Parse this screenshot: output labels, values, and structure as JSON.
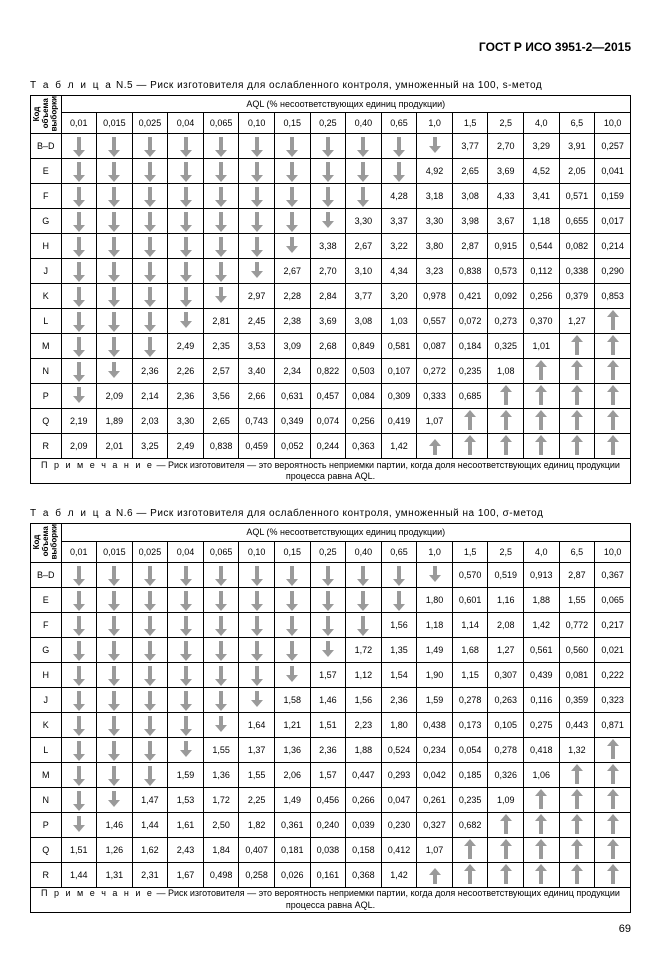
{
  "doc_header": "ГОСТ Р ИСО 3951-2—2015",
  "page_number": "69",
  "table_word": "Т а б л и ц а",
  "note_word": "П р и м е ч а н и е",
  "aql_header": "AQL (% несоответствующих единиц продукции)",
  "row_header": "Код объема выборки",
  "col_headers": [
    "0,01",
    "0,015",
    "0,025",
    "0,04",
    "0,065",
    "0,10",
    "0,15",
    "0,25",
    "0,40",
    "0,65",
    "1,0",
    "1,5",
    "2,5",
    "4,0",
    "6,5",
    "10,0"
  ],
  "row_labels": [
    "B–D",
    "E",
    "F",
    "G",
    "H",
    "J",
    "K",
    "L",
    "M",
    "N",
    "P",
    "Q",
    "R"
  ],
  "note_text": " — Риск изготовителя — это вероятность неприемки партии, когда доля несоответствующих единиц продукции процесса равна AQL.",
  "arrow_color": "#9a9a9a",
  "tables": [
    {
      "caption_rest": "  N.5 — Риск изготовителя для ослабленного контроля, умноженный на 100, s-метод",
      "cells": [
        [
          "↓",
          "↓",
          "↓",
          "↓",
          "↓",
          "↓",
          "↓",
          "↓",
          "↓",
          "↓",
          "⇓",
          "3,77",
          "2,70",
          "3,29",
          "3,91",
          "0,257"
        ],
        [
          "↓",
          "↓",
          "↓",
          "↓",
          "↓",
          "↓",
          "↓",
          "↓",
          "↓",
          "↓",
          "4,92",
          "2,65",
          "3,69",
          "4,52",
          "2,05",
          "0,041"
        ],
        [
          "↓",
          "↓",
          "↓",
          "↓",
          "↓",
          "↓",
          "↓",
          "↓",
          "↓",
          "4,28",
          "3,18",
          "3,08",
          "4,33",
          "3,41",
          "0,571",
          "0,159"
        ],
        [
          "↓",
          "↓",
          "↓",
          "↓",
          "↓",
          "↓",
          "↓",
          "⇓",
          "3,30",
          "3,37",
          "3,30",
          "3,98",
          "3,67",
          "1,18",
          "0,655",
          "0,017"
        ],
        [
          "↓",
          "↓",
          "↓",
          "↓",
          "↓",
          "↓",
          "⇓",
          "3,38",
          "2,67",
          "3,22",
          "3,80",
          "2,87",
          "0,915",
          "0,544",
          "0,082",
          "0,214"
        ],
        [
          "↓",
          "↓",
          "↓",
          "↓",
          "↓",
          "⇓",
          "2,67",
          "2,70",
          "3,10",
          "4,34",
          "3,23",
          "0,838",
          "0,573",
          "0,112",
          "0,338",
          "0,290"
        ],
        [
          "↓",
          "↓",
          "↓",
          "↓",
          "⇓",
          "2,97",
          "2,28",
          "2,84",
          "3,77",
          "3,20",
          "0,978",
          "0,421",
          "0,092",
          "0,256",
          "0,379",
          "0,853"
        ],
        [
          "↓",
          "↓",
          "↓",
          "⇓",
          "2,81",
          "2,45",
          "2,38",
          "3,69",
          "3,08",
          "1,03",
          "0,557",
          "0,072",
          "0,273",
          "0,370",
          "1,27",
          "↑"
        ],
        [
          "↓",
          "↓",
          "↓",
          "2,49",
          "2,35",
          "3,53",
          "3,09",
          "2,68",
          "0,849",
          "0,581",
          "0,087",
          "0,184",
          "0,325",
          "1,01",
          "↑",
          "↑"
        ],
        [
          "↓",
          "⇓",
          "2,36",
          "2,26",
          "2,57",
          "3,40",
          "2,34",
          "0,822",
          "0,503",
          "0,107",
          "0,272",
          "0,235",
          "1,08",
          "↑",
          "↑",
          "↑"
        ],
        [
          "⇓",
          "2,09",
          "2,14",
          "2,36",
          "3,56",
          "2,66",
          "0,631",
          "0,457",
          "0,084",
          "0,309",
          "0,333",
          "0,685",
          "↑",
          "↑",
          "↑",
          "↑"
        ],
        [
          "2,19",
          "1,89",
          "2,03",
          "3,30",
          "2,65",
          "0,743",
          "0,349",
          "0,074",
          "0,256",
          "0,419",
          "1,07",
          "↑",
          "↑",
          "↑",
          "↑",
          "↑"
        ],
        [
          "2,09",
          "2,01",
          "3,25",
          "2,49",
          "0,838",
          "0,459",
          "0,052",
          "0,244",
          "0,363",
          "1,42",
          "⇑",
          "↑",
          "↑",
          "↑",
          "↑",
          "↑"
        ]
      ]
    },
    {
      "caption_rest": "  N.6 — Риск изготовителя для ослабленного контроля, умноженный на 100, σ-метод",
      "cells": [
        [
          "↓",
          "↓",
          "↓",
          "↓",
          "↓",
          "↓",
          "↓",
          "↓",
          "↓",
          "↓",
          "⇓",
          "0,570",
          "0,519",
          "0,913",
          "2,87",
          "0,367"
        ],
        [
          "↓",
          "↓",
          "↓",
          "↓",
          "↓",
          "↓",
          "↓",
          "↓",
          "↓",
          "↓",
          "1,80",
          "0,601",
          "1,16",
          "1,88",
          "1,55",
          "0,065"
        ],
        [
          "↓",
          "↓",
          "↓",
          "↓",
          "↓",
          "↓",
          "↓",
          "↓",
          "↓",
          "1,56",
          "1,18",
          "1,14",
          "2,08",
          "1,42",
          "0,772",
          "0,217"
        ],
        [
          "↓",
          "↓",
          "↓",
          "↓",
          "↓",
          "↓",
          "↓",
          "⇓",
          "1,72",
          "1,35",
          "1,49",
          "1,68",
          "1,27",
          "0,561",
          "0,560",
          "0,021"
        ],
        [
          "↓",
          "↓",
          "↓",
          "↓",
          "↓",
          "↓",
          "⇓",
          "1,57",
          "1,12",
          "1,54",
          "1,90",
          "1,15",
          "0,307",
          "0,439",
          "0,081",
          "0,222"
        ],
        [
          "↓",
          "↓",
          "↓",
          "↓",
          "↓",
          "⇓",
          "1,58",
          "1,46",
          "1,56",
          "2,36",
          "1,59",
          "0,278",
          "0,263",
          "0,116",
          "0,359",
          "0,323"
        ],
        [
          "↓",
          "↓",
          "↓",
          "↓",
          "⇓",
          "1,64",
          "1,21",
          "1,51",
          "2,23",
          "1,80",
          "0,438",
          "0,173",
          "0,105",
          "0,275",
          "0,443",
          "0,871"
        ],
        [
          "↓",
          "↓",
          "↓",
          "⇓",
          "1,55",
          "1,37",
          "1,36",
          "2,36",
          "1,88",
          "0,524",
          "0,234",
          "0,054",
          "0,278",
          "0,418",
          "1,32",
          "↑"
        ],
        [
          "↓",
          "↓",
          "↓",
          "1,59",
          "1,36",
          "1,55",
          "2,06",
          "1,57",
          "0,447",
          "0,293",
          "0,042",
          "0,185",
          "0,326",
          "1,06",
          "↑",
          "↑"
        ],
        [
          "↓",
          "⇓",
          "1,47",
          "1,53",
          "1,72",
          "2,25",
          "1,49",
          "0,456",
          "0,266",
          "0,047",
          "0,261",
          "0,235",
          "1,09",
          "↑",
          "↑",
          "↑"
        ],
        [
          "⇓",
          "1,46",
          "1,44",
          "1,61",
          "2,50",
          "1,82",
          "0,361",
          "0,240",
          "0,039",
          "0,230",
          "0,327",
          "0,682",
          "↑",
          "↑",
          "↑",
          "↑"
        ],
        [
          "1,51",
          "1,26",
          "1,62",
          "2,43",
          "1,84",
          "0,407",
          "0,181",
          "0,038",
          "0,158",
          "0,412",
          "1,07",
          "↑",
          "↑",
          "↑",
          "↑",
          "↑"
        ],
        [
          "1,44",
          "1,31",
          "2,31",
          "1,67",
          "0,498",
          "0,258",
          "0,026",
          "0,161",
          "0,368",
          "1,42",
          "⇑",
          "↑",
          "↑",
          "↑",
          "↑",
          "↑"
        ]
      ]
    }
  ]
}
